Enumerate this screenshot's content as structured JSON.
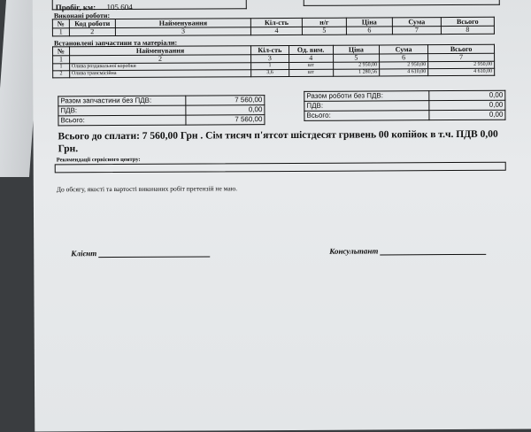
{
  "header": {
    "mileage_label": "Пробіг, км:",
    "mileage_value": "105 604"
  },
  "works": {
    "title": "Виконані роботи:",
    "columns": [
      "№",
      "Код роботи",
      "Найменування",
      "Кіл-сть",
      "н/г",
      "Ціна",
      "Сума",
      "Всього"
    ],
    "numbering": [
      "1",
      "2",
      "3",
      "4",
      "5",
      "6",
      "7",
      "8"
    ]
  },
  "parts": {
    "title": "Встановлені запчастини та матеріали:",
    "columns": [
      "№",
      "Найменування",
      "Кіл-сть",
      "Од. вим.",
      "Ціна",
      "Сума",
      "Всього"
    ],
    "numbering": [
      "1",
      "2",
      "3",
      "4",
      "5",
      "6",
      "7"
    ],
    "rows": [
      [
        "1",
        "Олива роздавальної коробки",
        "1",
        "шт",
        "2 950,00",
        "2 950,00",
        "2 950,00"
      ],
      [
        "2",
        "Олива трансмісійна",
        "3,6",
        "шт",
        "1 280,56",
        "4 610,00",
        "4 610,00"
      ]
    ]
  },
  "parts_summary": [
    [
      "Разом запчастини без ПДВ:",
      "7 560,00"
    ],
    [
      "ПДВ:",
      "0,00"
    ],
    [
      "Всього:",
      "7 560,00"
    ]
  ],
  "works_summary": [
    [
      "Разом роботи без ПДВ:",
      "0,00"
    ],
    [
      "ПДВ:",
      "0,00"
    ],
    [
      "Всього:",
      "0,00"
    ]
  ],
  "total_text": "Всього до сплати: 7 560,00 Грн .  Сім тисяч п'ятсот шістдесят гривень 00 копійок в т.ч. ПДВ 0,00 Грн.",
  "recommendations_label": "Рекомендації сервісного центру:",
  "no_claims": "До обсягу, якості та вартості виконаних робіт претензій не маю.",
  "client_label": "Клієнт",
  "consultant_label": "Консультант"
}
